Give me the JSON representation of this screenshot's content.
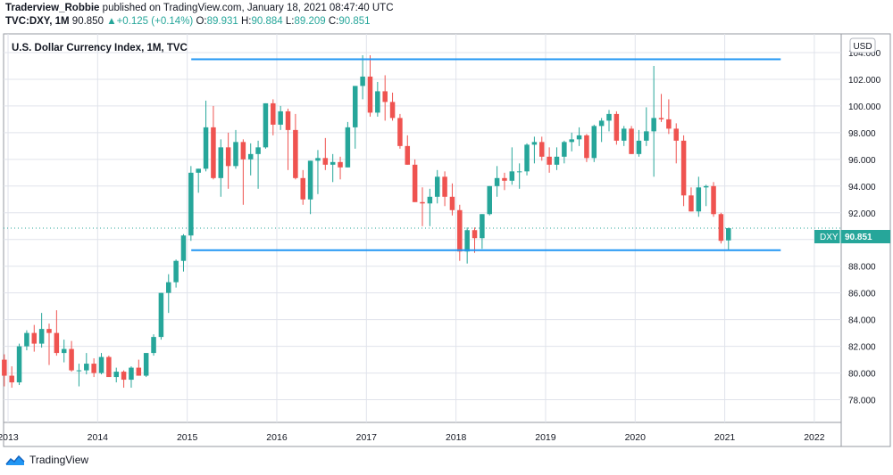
{
  "header": {
    "author": "Traderview_Robbie",
    "published_text": "published on TradingView.com, January 18, 2021 08:47:40 UTC",
    "symbol": "TVC:DXY,",
    "interval": "1M",
    "last": "90.850",
    "change": "+0.125 (+0.14%)",
    "o_label": "O:",
    "o_value": "89.931",
    "h_label": "H:",
    "h_value": "90.884",
    "l_label": "L:",
    "l_value": "89.209",
    "c_label": "C:",
    "c_value": "90.851"
  },
  "footer": {
    "brand": "TradingView"
  },
  "colors": {
    "up": "#26a69a",
    "down": "#ef5350",
    "line": "#2196f3",
    "grid": "#e0e3eb"
  },
  "chart_data": {
    "type": "candlestick",
    "title": "U.S. Dollar Currency Index, 1M, TVC",
    "currency_label": "USD",
    "price_label": {
      "symbol": "DXY",
      "value": "90.851"
    },
    "y_ticks": [
      "78.000",
      "80.000",
      "82.000",
      "84.000",
      "86.000",
      "88.000",
      "90.000",
      "92.000",
      "94.000",
      "96.000",
      "98.000",
      "100.000",
      "102.000",
      "104.000"
    ],
    "y_range": [
      76.3,
      105.4
    ],
    "x_ticks": [
      "2013",
      "2014",
      "2015",
      "2016",
      "2017",
      "2018",
      "2019",
      "2020",
      "2021",
      "2022"
    ],
    "x_range": [
      2012.95,
      2022.3
    ],
    "horizontal_lines": [
      {
        "value": 103.5,
        "from": "2015-02",
        "to": "2021-08"
      },
      {
        "value": 89.2,
        "from": "2015-02",
        "to": "2021-08"
      }
    ],
    "last_price": 90.851,
    "candles": [
      {
        "t": "2012-11",
        "o": 80.1,
        "h": 81.8,
        "l": 79.9,
        "c": 81.0
      },
      {
        "t": "2012-12",
        "o": 81.0,
        "h": 81.4,
        "l": 79.0,
        "c": 79.8
      },
      {
        "t": "2013-01",
        "o": 79.8,
        "h": 80.5,
        "l": 78.9,
        "c": 79.3
      },
      {
        "t": "2013-02",
        "o": 79.3,
        "h": 82.2,
        "l": 79.1,
        "c": 82.0
      },
      {
        "t": "2013-03",
        "o": 82.0,
        "h": 83.2,
        "l": 81.7,
        "c": 83.0
      },
      {
        "t": "2013-04",
        "o": 83.0,
        "h": 83.6,
        "l": 81.6,
        "c": 82.2
      },
      {
        "t": "2013-05",
        "o": 82.2,
        "h": 84.5,
        "l": 81.9,
        "c": 83.3
      },
      {
        "t": "2013-06",
        "o": 83.3,
        "h": 83.7,
        "l": 80.6,
        "c": 83.0
      },
      {
        "t": "2013-07",
        "o": 83.0,
        "h": 84.7,
        "l": 81.3,
        "c": 81.5
      },
      {
        "t": "2013-08",
        "o": 81.5,
        "h": 82.5,
        "l": 80.8,
        "c": 81.8
      },
      {
        "t": "2013-09",
        "o": 81.8,
        "h": 82.4,
        "l": 80.1,
        "c": 80.2
      },
      {
        "t": "2013-10",
        "o": 80.2,
        "h": 80.7,
        "l": 79.0,
        "c": 80.2
      },
      {
        "t": "2013-11",
        "o": 80.2,
        "h": 81.5,
        "l": 79.9,
        "c": 80.7
      },
      {
        "t": "2013-12",
        "o": 80.7,
        "h": 81.1,
        "l": 79.7,
        "c": 80.0
      },
      {
        "t": "2014-01",
        "o": 80.0,
        "h": 81.5,
        "l": 79.9,
        "c": 81.2
      },
      {
        "t": "2014-02",
        "o": 81.2,
        "h": 81.3,
        "l": 79.8,
        "c": 79.7
      },
      {
        "t": "2014-03",
        "o": 79.7,
        "h": 80.4,
        "l": 79.3,
        "c": 80.1
      },
      {
        "t": "2014-04",
        "o": 80.1,
        "h": 80.2,
        "l": 78.9,
        "c": 79.5
      },
      {
        "t": "2014-05",
        "o": 79.5,
        "h": 80.5,
        "l": 78.9,
        "c": 80.4
      },
      {
        "t": "2014-06",
        "o": 80.4,
        "h": 81.0,
        "l": 79.8,
        "c": 79.8
      },
      {
        "t": "2014-07",
        "o": 79.8,
        "h": 81.5,
        "l": 79.7,
        "c": 81.5
      },
      {
        "t": "2014-08",
        "o": 81.5,
        "h": 82.9,
        "l": 81.3,
        "c": 82.7
      },
      {
        "t": "2014-09",
        "o": 82.7,
        "h": 86.0,
        "l": 82.5,
        "c": 86.0
      },
      {
        "t": "2014-10",
        "o": 86.0,
        "h": 87.4,
        "l": 84.5,
        "c": 86.8
      },
      {
        "t": "2014-11",
        "o": 86.8,
        "h": 88.5,
        "l": 86.4,
        "c": 88.4
      },
      {
        "t": "2014-12",
        "o": 88.4,
        "h": 90.4,
        "l": 87.6,
        "c": 90.3
      },
      {
        "t": "2015-01",
        "o": 90.3,
        "h": 95.5,
        "l": 89.9,
        "c": 95.0
      },
      {
        "t": "2015-02",
        "o": 95.0,
        "h": 95.3,
        "l": 93.5,
        "c": 95.3
      },
      {
        "t": "2015-03",
        "o": 95.3,
        "h": 100.4,
        "l": 95.1,
        "c": 98.4
      },
      {
        "t": "2015-04",
        "o": 98.4,
        "h": 100.0,
        "l": 94.5,
        "c": 94.6
      },
      {
        "t": "2015-05",
        "o": 94.6,
        "h": 97.5,
        "l": 93.2,
        "c": 96.9
      },
      {
        "t": "2015-06",
        "o": 96.9,
        "h": 98.0,
        "l": 93.8,
        "c": 95.5
      },
      {
        "t": "2015-07",
        "o": 95.5,
        "h": 98.2,
        "l": 95.3,
        "c": 97.3
      },
      {
        "t": "2015-08",
        "o": 97.3,
        "h": 97.5,
        "l": 92.6,
        "c": 96.0
      },
      {
        "t": "2015-09",
        "o": 96.0,
        "h": 97.2,
        "l": 94.8,
        "c": 96.4
      },
      {
        "t": "2015-10",
        "o": 96.4,
        "h": 97.4,
        "l": 93.8,
        "c": 96.9
      },
      {
        "t": "2015-11",
        "o": 96.9,
        "h": 100.2,
        "l": 96.8,
        "c": 100.2
      },
      {
        "t": "2015-12",
        "o": 100.2,
        "h": 100.5,
        "l": 97.8,
        "c": 98.6
      },
      {
        "t": "2016-01",
        "o": 98.6,
        "h": 100.0,
        "l": 98.2,
        "c": 99.6
      },
      {
        "t": "2016-02",
        "o": 99.6,
        "h": 99.8,
        "l": 95.2,
        "c": 98.2
      },
      {
        "t": "2016-03",
        "o": 98.2,
        "h": 99.4,
        "l": 94.5,
        "c": 94.6
      },
      {
        "t": "2016-04",
        "o": 94.6,
        "h": 95.2,
        "l": 92.6,
        "c": 93.0
      },
      {
        "t": "2016-05",
        "o": 93.0,
        "h": 95.9,
        "l": 91.9,
        "c": 95.9
      },
      {
        "t": "2016-06",
        "o": 95.9,
        "h": 96.7,
        "l": 93.4,
        "c": 96.1
      },
      {
        "t": "2016-07",
        "o": 96.1,
        "h": 97.6,
        "l": 95.2,
        "c": 95.6
      },
      {
        "t": "2016-08",
        "o": 95.6,
        "h": 96.4,
        "l": 94.3,
        "c": 95.8
      },
      {
        "t": "2016-09",
        "o": 95.8,
        "h": 96.2,
        "l": 94.5,
        "c": 95.4
      },
      {
        "t": "2016-10",
        "o": 95.4,
        "h": 98.8,
        "l": 95.4,
        "c": 98.4
      },
      {
        "t": "2016-11",
        "o": 98.4,
        "h": 101.5,
        "l": 96.8,
        "c": 101.5
      },
      {
        "t": "2016-12",
        "o": 101.5,
        "h": 103.8,
        "l": 100.5,
        "c": 102.2
      },
      {
        "t": "2017-01",
        "o": 102.2,
        "h": 103.8,
        "l": 99.2,
        "c": 99.5
      },
      {
        "t": "2017-02",
        "o": 99.5,
        "h": 101.8,
        "l": 99.2,
        "c": 101.1
      },
      {
        "t": "2017-03",
        "o": 101.1,
        "h": 102.3,
        "l": 98.9,
        "c": 100.3
      },
      {
        "t": "2017-04",
        "o": 100.3,
        "h": 101.0,
        "l": 98.9,
        "c": 99.1
      },
      {
        "t": "2017-05",
        "o": 99.1,
        "h": 99.4,
        "l": 96.8,
        "c": 97.0
      },
      {
        "t": "2017-06",
        "o": 97.0,
        "h": 97.8,
        "l": 95.6,
        "c": 95.6
      },
      {
        "t": "2017-07",
        "o": 95.6,
        "h": 96.0,
        "l": 92.8,
        "c": 92.8
      },
      {
        "t": "2017-08",
        "o": 92.8,
        "h": 93.9,
        "l": 91.0,
        "c": 92.7
      },
      {
        "t": "2017-09",
        "o": 92.7,
        "h": 93.8,
        "l": 91.0,
        "c": 93.2
      },
      {
        "t": "2017-10",
        "o": 93.2,
        "h": 95.2,
        "l": 92.7,
        "c": 94.7
      },
      {
        "t": "2017-11",
        "o": 94.7,
        "h": 95.1,
        "l": 92.5,
        "c": 93.2
      },
      {
        "t": "2017-12",
        "o": 93.2,
        "h": 94.2,
        "l": 91.8,
        "c": 92.2
      },
      {
        "t": "2018-01",
        "o": 92.2,
        "h": 92.6,
        "l": 88.4,
        "c": 89.1
      },
      {
        "t": "2018-02",
        "o": 89.1,
        "h": 90.9,
        "l": 88.2,
        "c": 90.7
      },
      {
        "t": "2018-03",
        "o": 90.7,
        "h": 90.9,
        "l": 89.0,
        "c": 90.1
      },
      {
        "t": "2018-04",
        "o": 90.1,
        "h": 91.9,
        "l": 89.3,
        "c": 91.9
      },
      {
        "t": "2018-05",
        "o": 91.9,
        "h": 94.0,
        "l": 91.8,
        "c": 94.0
      },
      {
        "t": "2018-06",
        "o": 94.0,
        "h": 95.5,
        "l": 93.2,
        "c": 94.6
      },
      {
        "t": "2018-07",
        "o": 94.6,
        "h": 95.0,
        "l": 93.7,
        "c": 94.4
      },
      {
        "t": "2018-08",
        "o": 94.4,
        "h": 96.9,
        "l": 94.1,
        "c": 95.1
      },
      {
        "t": "2018-09",
        "o": 95.1,
        "h": 95.7,
        "l": 93.8,
        "c": 95.1
      },
      {
        "t": "2018-10",
        "o": 95.1,
        "h": 97.2,
        "l": 94.8,
        "c": 97.1
      },
      {
        "t": "2018-11",
        "o": 97.1,
        "h": 97.7,
        "l": 95.7,
        "c": 97.3
      },
      {
        "t": "2018-12",
        "o": 97.3,
        "h": 97.7,
        "l": 95.9,
        "c": 96.2
      },
      {
        "t": "2019-01",
        "o": 96.2,
        "h": 96.9,
        "l": 95.0,
        "c": 95.6
      },
      {
        "t": "2019-02",
        "o": 95.6,
        "h": 96.9,
        "l": 95.2,
        "c": 96.2
      },
      {
        "t": "2019-03",
        "o": 96.2,
        "h": 97.4,
        "l": 95.7,
        "c": 97.3
      },
      {
        "t": "2019-04",
        "o": 97.3,
        "h": 98.0,
        "l": 96.6,
        "c": 97.5
      },
      {
        "t": "2019-05",
        "o": 97.5,
        "h": 98.4,
        "l": 97.0,
        "c": 97.8
      },
      {
        "t": "2019-06",
        "o": 97.8,
        "h": 97.9,
        "l": 95.8,
        "c": 96.1
      },
      {
        "t": "2019-07",
        "o": 96.1,
        "h": 98.6,
        "l": 95.8,
        "c": 98.5
      },
      {
        "t": "2019-08",
        "o": 98.5,
        "h": 99.1,
        "l": 97.3,
        "c": 98.9
      },
      {
        "t": "2019-09",
        "o": 98.9,
        "h": 99.7,
        "l": 98.1,
        "c": 99.4
      },
      {
        "t": "2019-10",
        "o": 99.4,
        "h": 99.6,
        "l": 97.1,
        "c": 97.4
      },
      {
        "t": "2019-11",
        "o": 97.4,
        "h": 98.5,
        "l": 97.0,
        "c": 98.3
      },
      {
        "t": "2019-12",
        "o": 98.3,
        "h": 98.5,
        "l": 96.4,
        "c": 96.4
      },
      {
        "t": "2020-01",
        "o": 96.4,
        "h": 98.2,
        "l": 96.2,
        "c": 97.4
      },
      {
        "t": "2020-02",
        "o": 97.4,
        "h": 99.9,
        "l": 97.0,
        "c": 98.1
      },
      {
        "t": "2020-03",
        "o": 98.1,
        "h": 103.0,
        "l": 94.7,
        "c": 99.1
      },
      {
        "t": "2020-04",
        "o": 99.1,
        "h": 100.9,
        "l": 98.8,
        "c": 99.0
      },
      {
        "t": "2020-05",
        "o": 99.0,
        "h": 100.5,
        "l": 97.9,
        "c": 98.3
      },
      {
        "t": "2020-06",
        "o": 98.3,
        "h": 98.7,
        "l": 95.7,
        "c": 97.4
      },
      {
        "t": "2020-07",
        "o": 97.4,
        "h": 97.8,
        "l": 92.5,
        "c": 93.3
      },
      {
        "t": "2020-08",
        "o": 93.3,
        "h": 93.9,
        "l": 92.1,
        "c": 92.1
      },
      {
        "t": "2020-09",
        "o": 92.1,
        "h": 94.7,
        "l": 91.7,
        "c": 93.9
      },
      {
        "t": "2020-10",
        "o": 93.9,
        "h": 94.1,
        "l": 92.5,
        "c": 94.0
      },
      {
        "t": "2020-11",
        "o": 94.0,
        "h": 94.3,
        "l": 91.7,
        "c": 91.9
      },
      {
        "t": "2020-12",
        "o": 91.9,
        "h": 92.0,
        "l": 89.7,
        "c": 89.9
      },
      {
        "t": "2021-01",
        "o": 89.931,
        "h": 90.884,
        "l": 89.209,
        "c": 90.851
      }
    ]
  }
}
